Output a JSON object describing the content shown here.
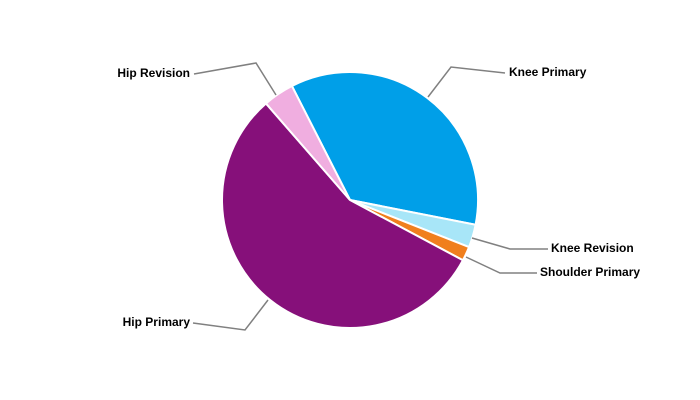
{
  "chart_data": {
    "type": "pie",
    "categories": [
      "Knee Primary",
      "Knee Revision",
      "Shoulder Primary",
      "Hip Primary",
      "Hip Revision"
    ],
    "values": [
      35.6,
      2.9,
      1.8,
      55.8,
      3.9
    ],
    "colors": [
      "#009fe8",
      "#a8e6f8",
      "#f07f1d",
      "#86107a",
      "#f0aee0"
    ]
  }
}
